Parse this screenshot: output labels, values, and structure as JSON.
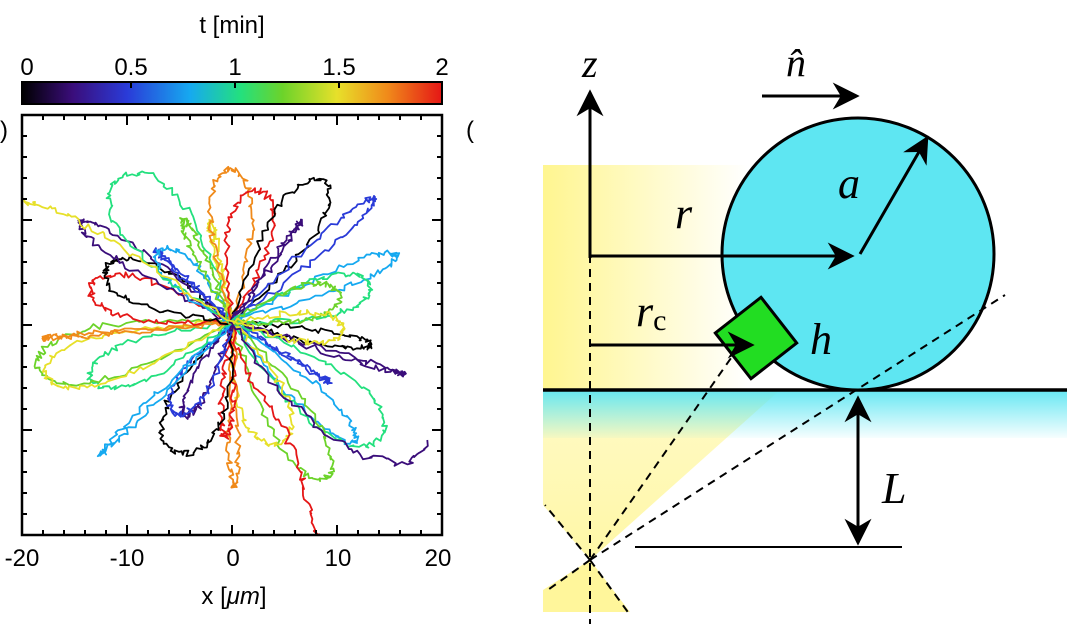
{
  "left_panel": {
    "panel_label": ")",
    "colorbar": {
      "title": "t [min]",
      "ticks": [
        "0",
        "0.5",
        "1",
        "1.5",
        "2"
      ],
      "range": [
        0,
        2
      ]
    },
    "xlabel_prefix": "x [",
    "xlabel_unit": "μm",
    "xlabel_suffix": "]",
    "xticks": [
      "-20",
      "-10",
      "0",
      "10",
      "20"
    ],
    "xlim": [
      -20,
      20
    ]
  },
  "right_panel": {
    "panel_label": "(",
    "labels": {
      "z": "z",
      "n_hat": "n̂",
      "a": "a",
      "r": "r",
      "rc_main": "r",
      "rc_sub": "c",
      "h": "h",
      "L": "L"
    },
    "colors": {
      "sphere": "#5ee6f2",
      "cube": "#22dd22",
      "light_cone": "#fff58a",
      "substrate": "#5ee6f2"
    }
  },
  "colors": {
    "colormap": [
      "#000000",
      "#3a0d7a",
      "#2a3bd8",
      "#16a9f0",
      "#23e07e",
      "#6cd32a",
      "#e7e02a",
      "#f08a1a",
      "#e51616"
    ]
  }
}
